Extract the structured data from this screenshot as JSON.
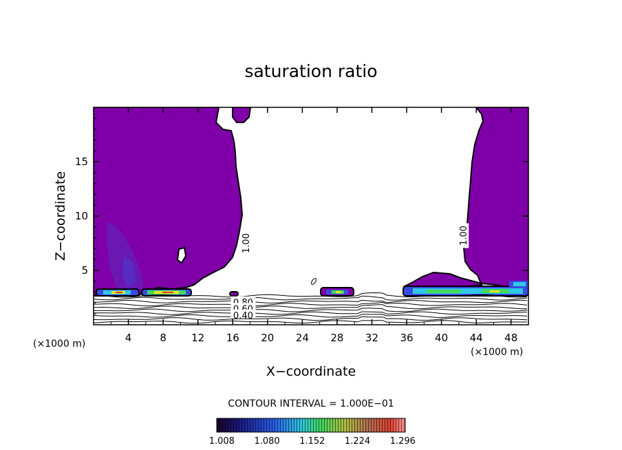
{
  "chart_data": {
    "type": "heatmap",
    "title": "saturation ratio",
    "xlabel": "X−coordinate",
    "ylabel": "Z−coordinate",
    "x_unit_left": "(×1000 m)",
    "x_unit_right": "(×1000 m)",
    "xlim": [
      0,
      50
    ],
    "ylim": [
      0,
      20
    ],
    "x_ticks": [
      4,
      8,
      12,
      16,
      20,
      24,
      28,
      32,
      36,
      40,
      44,
      48
    ],
    "y_ticks": [
      5,
      10,
      15
    ],
    "contour_interval_text": "CONTOUR INTERVAL = 1.000E−01",
    "contour_labels": [
      {
        "text": "1.00",
        "x": 17.5,
        "z": 7.5
      },
      {
        "text": "1.00",
        "x": 42.5,
        "z": 8.2
      },
      {
        "text": "0.80",
        "x": 17.2,
        "z": 2.1
      },
      {
        "text": "0.60",
        "x": 17.2,
        "z": 1.5
      },
      {
        "text": "0.40",
        "x": 17.2,
        "z": 0.9
      }
    ],
    "colorbar": {
      "ticks": [
        "1.008",
        "1.080",
        "1.152",
        "1.224",
        "1.296"
      ],
      "min": 1.0,
      "max": 1.3
    },
    "colors": {
      "fill": "#7f00a8",
      "blue": "#3a4be0",
      "cyan": "#2ec9e8",
      "green": "#44d85a",
      "yellow": "#e6e62a",
      "red": "#e03a2a"
    }
  }
}
